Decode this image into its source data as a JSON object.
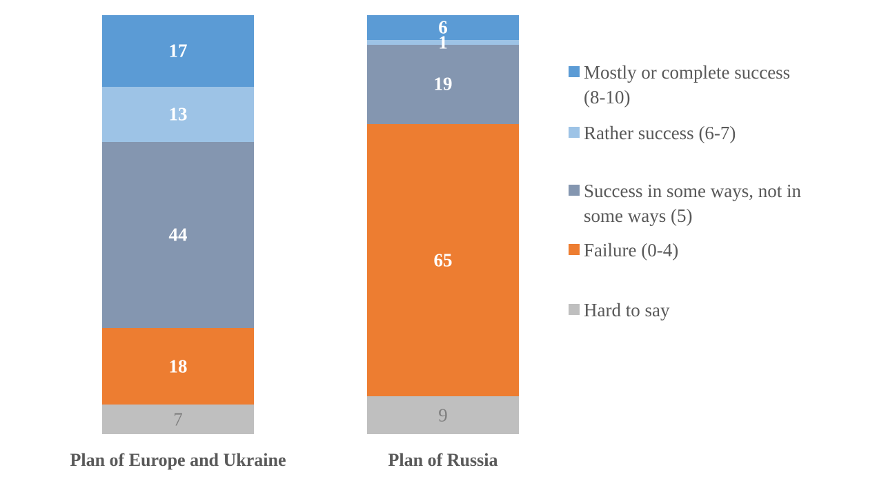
{
  "chart_data": {
    "type": "bar",
    "subtype": "100%-stacked-column",
    "title": "",
    "xlabel": "",
    "ylabel": "",
    "grid": false,
    "axes_visible": false,
    "legend_position": "right",
    "categories": [
      "Plan of Europe and Ukraine",
      "Plan of Russia"
    ],
    "series": [
      {
        "name": "Mostly or complete success (8-10)",
        "color": "#5B9BD5",
        "label_color": "#FFFFFF",
        "values": [
          17,
          6
        ]
      },
      {
        "name": "Rather success (6-7)",
        "color": "#9DC3E6",
        "label_color": "#FFFFFF",
        "values": [
          13,
          1
        ]
      },
      {
        "name": "Success in some ways, not in some ways (5)",
        "color": "#8496B0",
        "label_color": "#FFFFFF",
        "values": [
          44,
          19
        ]
      },
      {
        "name": "Failure (0-4)",
        "color": "#ED7D31",
        "label_color": "#FFFFFF",
        "values": [
          18,
          65
        ]
      },
      {
        "name": "Hard to say",
        "color": "#BFBFBF",
        "label_color": "#7F7F7F",
        "values": [
          7,
          9
        ]
      }
    ],
    "legend_items": [
      {
        "label": "Mostly or complete success\n(8-10)",
        "color": "#5B9BD5"
      },
      {
        "label": "Rather success (6-7)",
        "color": "#9DC3E6"
      },
      {
        "label": "Success in some ways, not in\nsome ways (5)",
        "color": "#8496B0"
      },
      {
        "label": "Failure (0-4)",
        "color": "#ED7D31"
      },
      {
        "label": "Hard to say",
        "color": "#BFBFBF"
      }
    ]
  },
  "colors": {
    "background": "#FFFFFF",
    "category_text": "#595959",
    "legend_text": "#595959",
    "muted_label_text": "#7F7F7F"
  }
}
